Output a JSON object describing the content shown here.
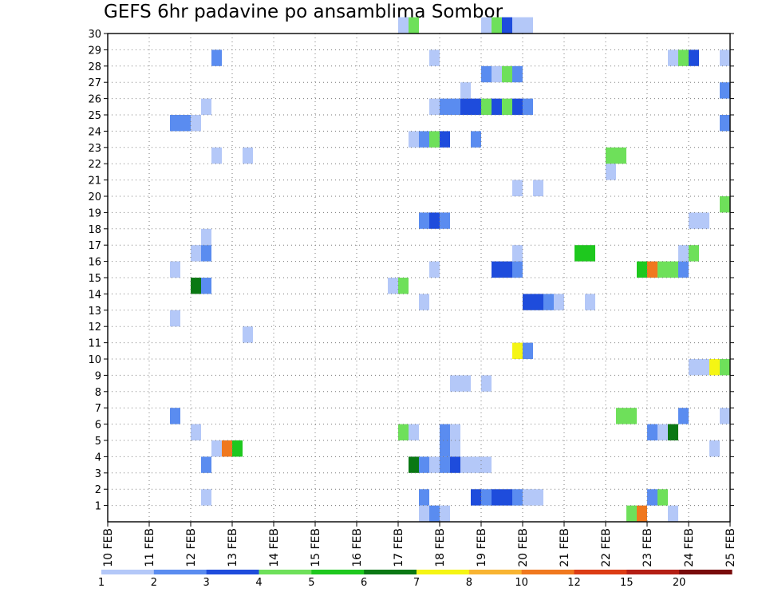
{
  "chart_data": {
    "type": "heatmap",
    "title": "GEFS 6hr padavine po ansamblima Sombor",
    "xlabel": "",
    "ylabel": "",
    "x_tick_labels": [
      "10 FEB",
      "11 FEB",
      "12 FEB",
      "13 FEB",
      "14 FEB",
      "15 FEB",
      "16 FEB",
      "17 FEB",
      "18 FEB",
      "19 FEB",
      "20 FEB",
      "21 FEB",
      "22 FEB",
      "23 FEB",
      "24 FEB",
      "25 FEB"
    ],
    "x_tick_days": [
      10,
      11,
      12,
      13,
      14,
      15,
      16,
      17,
      18,
      19,
      20,
      21,
      22,
      23,
      24,
      25
    ],
    "xlim": [
      10,
      25
    ],
    "x_step_days": 0.25,
    "y_tick_labels": [
      "1",
      "2",
      "3",
      "4",
      "5",
      "6",
      "7",
      "8",
      "9",
      "10",
      "11",
      "12",
      "13",
      "14",
      "15",
      "16",
      "17",
      "18",
      "19",
      "20",
      "21",
      "22",
      "23",
      "24",
      "25",
      "26",
      "27",
      "28",
      "29",
      "30"
    ],
    "ylim": [
      0,
      30
    ],
    "grid": true,
    "colorbar": {
      "labels": [
        "1",
        "2",
        "3",
        "4",
        "5",
        "6",
        "7",
        "8",
        "10",
        "12",
        "15",
        "20"
      ],
      "bins": [
        {
          "from": 1,
          "to": 2,
          "color": "#b4c8f8"
        },
        {
          "from": 2,
          "to": 3,
          "color": "#5a8cf0"
        },
        {
          "from": 3,
          "to": 4,
          "color": "#1e4cdc"
        },
        {
          "from": 4,
          "to": 5,
          "color": "#6ee05a"
        },
        {
          "from": 5,
          "to": 6,
          "color": "#1ec81e"
        },
        {
          "from": 6,
          "to": 7,
          "color": "#0a7814"
        },
        {
          "from": 7,
          "to": 8,
          "color": "#f5f514"
        },
        {
          "from": 8,
          "to": 10,
          "color": "#f8b432"
        },
        {
          "from": 10,
          "to": 12,
          "color": "#f0781e"
        },
        {
          "from": 12,
          "to": 15,
          "color": "#dc3c14"
        },
        {
          "from": 15,
          "to": 20,
          "color": "#b41e14"
        },
        {
          "from": 20,
          "to": 30,
          "color": "#780a0a"
        }
      ]
    },
    "cells": [
      {
        "member": 30,
        "day": 17.0,
        "value": 1.5
      },
      {
        "member": 30,
        "day": 17.25,
        "value": 4.5
      },
      {
        "member": 30,
        "day": 19.0,
        "value": 1.5
      },
      {
        "member": 30,
        "day": 19.25,
        "value": 4.5
      },
      {
        "member": 30,
        "day": 19.5,
        "value": 3.5
      },
      {
        "member": 30,
        "day": 19.75,
        "value": 1.5
      },
      {
        "member": 30,
        "day": 20.0,
        "value": 1.5
      },
      {
        "member": 28,
        "day": 12.5,
        "value": 2.5
      },
      {
        "member": 28,
        "day": 17.75,
        "value": 1.5
      },
      {
        "member": 28,
        "day": 23.5,
        "value": 1.5
      },
      {
        "member": 28,
        "day": 23.75,
        "value": 4.5
      },
      {
        "member": 28,
        "day": 24.0,
        "value": 3.5
      },
      {
        "member": 28,
        "day": 24.75,
        "value": 1.5
      },
      {
        "member": 27,
        "day": 19.0,
        "value": 2.5
      },
      {
        "member": 27,
        "day": 19.25,
        "value": 1.5
      },
      {
        "member": 27,
        "day": 19.5,
        "value": 4.5
      },
      {
        "member": 27,
        "day": 19.75,
        "value": 2.5
      },
      {
        "member": 26,
        "day": 18.5,
        "value": 1.5
      },
      {
        "member": 26,
        "day": 24.75,
        "value": 2.5
      },
      {
        "member": 25,
        "day": 12.25,
        "value": 1.5
      },
      {
        "member": 25,
        "day": 17.75,
        "value": 1.5
      },
      {
        "member": 25,
        "day": 18.0,
        "value": 2.5
      },
      {
        "member": 25,
        "day": 18.25,
        "value": 2.5
      },
      {
        "member": 25,
        "day": 18.5,
        "value": 3.5
      },
      {
        "member": 25,
        "day": 18.75,
        "value": 3.5
      },
      {
        "member": 25,
        "day": 19.0,
        "value": 4.5
      },
      {
        "member": 25,
        "day": 19.25,
        "value": 3.5
      },
      {
        "member": 25,
        "day": 19.5,
        "value": 4.5
      },
      {
        "member": 25,
        "day": 19.75,
        "value": 3.5
      },
      {
        "member": 25,
        "day": 20.0,
        "value": 2.5
      },
      {
        "member": 24,
        "day": 11.5,
        "value": 2.5
      },
      {
        "member": 24,
        "day": 11.75,
        "value": 2.5
      },
      {
        "member": 24,
        "day": 12.0,
        "value": 1.5
      },
      {
        "member": 24,
        "day": 24.75,
        "value": 2.5
      },
      {
        "member": 23,
        "day": 17.25,
        "value": 1.5
      },
      {
        "member": 23,
        "day": 17.5,
        "value": 2.5
      },
      {
        "member": 23,
        "day": 17.75,
        "value": 4.5
      },
      {
        "member": 23,
        "day": 18.0,
        "value": 3.5
      },
      {
        "member": 23,
        "day": 18.75,
        "value": 2.5
      },
      {
        "member": 22,
        "day": 12.5,
        "value": 1.5
      },
      {
        "member": 22,
        "day": 13.25,
        "value": 1.5
      },
      {
        "member": 22,
        "day": 22.0,
        "value": 4.5
      },
      {
        "member": 22,
        "day": 22.25,
        "value": 4.5
      },
      {
        "member": 21,
        "day": 22.0,
        "value": 1.5
      },
      {
        "member": 20,
        "day": 19.75,
        "value": 1.5
      },
      {
        "member": 20,
        "day": 20.25,
        "value": 1.5
      },
      {
        "member": 19,
        "day": 24.75,
        "value": 4.5
      },
      {
        "member": 18,
        "day": 17.5,
        "value": 2.5
      },
      {
        "member": 18,
        "day": 17.75,
        "value": 3.5
      },
      {
        "member": 18,
        "day": 18.0,
        "value": 2.5
      },
      {
        "member": 18,
        "day": 24.0,
        "value": 1.5
      },
      {
        "member": 18,
        "day": 24.25,
        "value": 1.5
      },
      {
        "member": 17,
        "day": 12.25,
        "value": 1.5
      },
      {
        "member": 16,
        "day": 12.0,
        "value": 1.5
      },
      {
        "member": 16,
        "day": 12.25,
        "value": 2.5
      },
      {
        "member": 16,
        "day": 19.75,
        "value": 1.5
      },
      {
        "member": 16,
        "day": 21.25,
        "value": 5.5
      },
      {
        "member": 16,
        "day": 21.5,
        "value": 5.5
      },
      {
        "member": 16,
        "day": 23.75,
        "value": 1.5
      },
      {
        "member": 16,
        "day": 24.0,
        "value": 4.5
      },
      {
        "member": 15,
        "day": 11.5,
        "value": 1.5
      },
      {
        "member": 15,
        "day": 17.75,
        "value": 1.5
      },
      {
        "member": 15,
        "day": 19.25,
        "value": 3.5
      },
      {
        "member": 15,
        "day": 19.5,
        "value": 3.5
      },
      {
        "member": 15,
        "day": 19.75,
        "value": 2.5
      },
      {
        "member": 15,
        "day": 22.75,
        "value": 5.5
      },
      {
        "member": 15,
        "day": 23.0,
        "value": 11
      },
      {
        "member": 15,
        "day": 23.25,
        "value": 4.5
      },
      {
        "member": 15,
        "day": 23.5,
        "value": 4.5
      },
      {
        "member": 15,
        "day": 23.75,
        "value": 2.5
      },
      {
        "member": 14,
        "day": 12.0,
        "value": 6.5
      },
      {
        "member": 14,
        "day": 12.25,
        "value": 2.5
      },
      {
        "member": 14,
        "day": 16.75,
        "value": 1.5
      },
      {
        "member": 14,
        "day": 17.0,
        "value": 4.5
      },
      {
        "member": 13,
        "day": 17.5,
        "value": 1.5
      },
      {
        "member": 13,
        "day": 20.0,
        "value": 3.5
      },
      {
        "member": 13,
        "day": 20.25,
        "value": 3.5
      },
      {
        "member": 13,
        "day": 20.5,
        "value": 2.5
      },
      {
        "member": 13,
        "day": 20.75,
        "value": 1.5
      },
      {
        "member": 13,
        "day": 21.5,
        "value": 1.5
      },
      {
        "member": 12,
        "day": 11.5,
        "value": 1.5
      },
      {
        "member": 11,
        "day": 13.25,
        "value": 1.5
      },
      {
        "member": 10,
        "day": 19.75,
        "value": 7.5
      },
      {
        "member": 10,
        "day": 20.0,
        "value": 2.5
      },
      {
        "member": 9,
        "day": 24.0,
        "value": 1.5
      },
      {
        "member": 9,
        "day": 24.25,
        "value": 1.5
      },
      {
        "member": 9,
        "day": 24.5,
        "value": 7.5
      },
      {
        "member": 9,
        "day": 24.75,
        "value": 4.5
      },
      {
        "member": 8,
        "day": 18.25,
        "value": 1.5
      },
      {
        "member": 8,
        "day": 18.5,
        "value": 1.5
      },
      {
        "member": 8,
        "day": 19.0,
        "value": 1.5
      },
      {
        "member": 6,
        "day": 11.5,
        "value": 2.5
      },
      {
        "member": 6,
        "day": 22.25,
        "value": 4.5
      },
      {
        "member": 6,
        "day": 22.5,
        "value": 4.5
      },
      {
        "member": 6,
        "day": 23.75,
        "value": 2.5
      },
      {
        "member": 6,
        "day": 24.75,
        "value": 1.5
      },
      {
        "member": 5,
        "day": 12.0,
        "value": 1.5
      },
      {
        "member": 5,
        "day": 17.0,
        "value": 4.5
      },
      {
        "member": 5,
        "day": 17.25,
        "value": 1.5
      },
      {
        "member": 5,
        "day": 18.0,
        "value": 2.5
      },
      {
        "member": 5,
        "day": 18.25,
        "value": 1.5
      },
      {
        "member": 5,
        "day": 23.0,
        "value": 2.5
      },
      {
        "member": 5,
        "day": 23.25,
        "value": 1.5
      },
      {
        "member": 5,
        "day": 23.5,
        "value": 6.5
      },
      {
        "member": 4,
        "day": 12.5,
        "value": 1.5
      },
      {
        "member": 4,
        "day": 12.75,
        "value": 11
      },
      {
        "member": 4,
        "day": 13.0,
        "value": 5.5
      },
      {
        "member": 4,
        "day": 18.0,
        "value": 2.5
      },
      {
        "member": 4,
        "day": 18.25,
        "value": 1.5
      },
      {
        "member": 4,
        "day": 24.5,
        "value": 1.5
      },
      {
        "member": 3,
        "day": 12.25,
        "value": 2.5
      },
      {
        "member": 3,
        "day": 17.25,
        "value": 6.5
      },
      {
        "member": 3,
        "day": 17.5,
        "value": 2.5
      },
      {
        "member": 3,
        "day": 17.75,
        "value": 1.5
      },
      {
        "member": 3,
        "day": 18.0,
        "value": 2.5
      },
      {
        "member": 3,
        "day": 18.25,
        "value": 3.5
      },
      {
        "member": 3,
        "day": 18.5,
        "value": 1.5
      },
      {
        "member": 3,
        "day": 18.75,
        "value": 1.5
      },
      {
        "member": 3,
        "day": 19.0,
        "value": 1.5
      },
      {
        "member": 1,
        "day": 12.25,
        "value": 1.5
      },
      {
        "member": 1,
        "day": 17.5,
        "value": 2.5
      },
      {
        "member": 1,
        "day": 18.75,
        "value": 3.5
      },
      {
        "member": 1,
        "day": 19.0,
        "value": 2.5
      },
      {
        "member": 1,
        "day": 19.25,
        "value": 3.5
      },
      {
        "member": 1,
        "day": 19.5,
        "value": 3.5
      },
      {
        "member": 1,
        "day": 19.75,
        "value": 2.5
      },
      {
        "member": 1,
        "day": 20.0,
        "value": 1.5
      },
      {
        "member": 1,
        "day": 20.25,
        "value": 1.5
      },
      {
        "member": 1,
        "day": 23.0,
        "value": 2.5
      },
      {
        "member": 1,
        "day": 23.25,
        "value": 4.5
      },
      {
        "member": 0,
        "day": 17.5,
        "value": 1.5
      },
      {
        "member": 0,
        "day": 17.75,
        "value": 2.5
      },
      {
        "member": 0,
        "day": 18.0,
        "value": 1.5
      },
      {
        "member": 0,
        "day": 22.5,
        "value": 4.5
      },
      {
        "member": 0,
        "day": 22.75,
        "value": 11
      },
      {
        "member": 0,
        "day": 23.5,
        "value": 1.5
      }
    ]
  }
}
